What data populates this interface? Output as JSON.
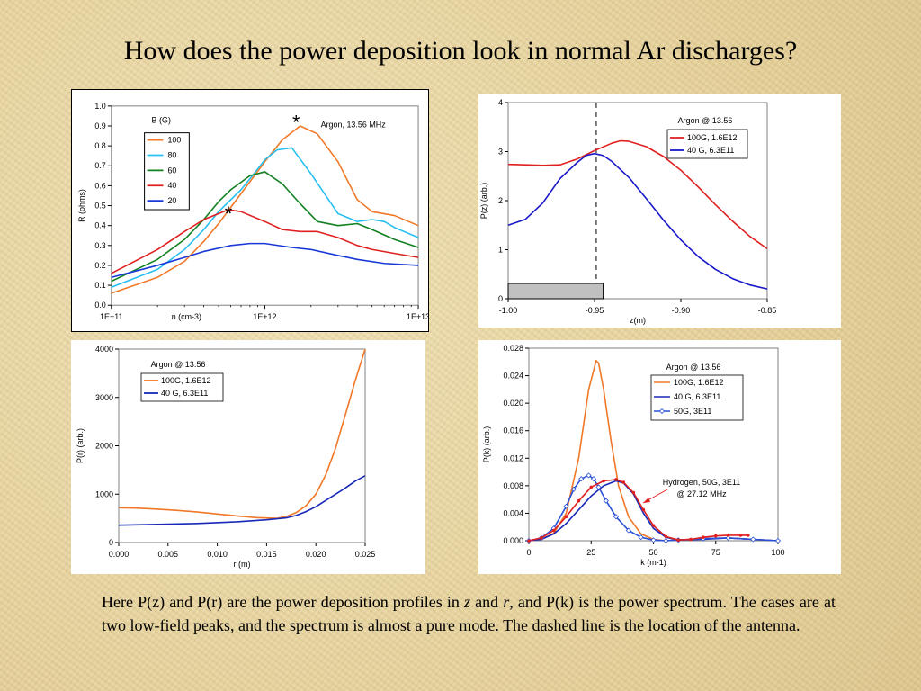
{
  "title": "How does the power deposition look in normal Ar discharges?",
  "caption": {
    "p1": "Here P(z) and P(r) are the power deposition profiles in ",
    "z": "z",
    "and": " and ",
    "r": "r",
    "p2": ", and P(k) is the power spectrum.  The cases are at two low-field peaks, and the spectrum is almost a pure mode.  The dashed line is the location of the antenna."
  },
  "chart_data": [
    {
      "id": "R_vs_n",
      "type": "line",
      "xscale": "log",
      "xlim": [
        100000000000.0,
        10000000000000.0
      ],
      "ylim": [
        0,
        1.0
      ],
      "ylabel": "R (ohms)",
      "xlabel": "n (cm-3)",
      "xtick_labels": [
        "1E+11",
        "1E+12",
        "1E+13"
      ],
      "ytick_labels": [
        "0.0",
        "0.1",
        "0.2",
        "0.3",
        "0.4",
        "0.5",
        "0.6",
        "0.7",
        "0.8",
        "0.9",
        "1.0"
      ],
      "annotation": "Argon, 13.56 MHz",
      "legend_title": "B (G)",
      "markers": [
        {
          "text": "*",
          "x": 1600000000000.0,
          "y": 0.93
        },
        {
          "text": "*",
          "x": 580000000000.0,
          "y": 0.47
        }
      ],
      "series": [
        {
          "name": "100",
          "color": "#f07828",
          "x": [
            100000000000.0,
            200000000000.0,
            300000000000.0,
            400000000000.0,
            500000000000.0,
            700000000000.0,
            1000000000000.0,
            1300000000000.0,
            1700000000000.0,
            2200000000000.0,
            3000000000000.0,
            4000000000000.0,
            5000000000000.0,
            7000000000000.0,
            10000000000000.0
          ],
          "y": [
            0.06,
            0.14,
            0.22,
            0.32,
            0.41,
            0.56,
            0.72,
            0.83,
            0.9,
            0.86,
            0.72,
            0.53,
            0.47,
            0.45,
            0.4
          ]
        },
        {
          "name": "80",
          "color": "#28c0f0",
          "x": [
            100000000000.0,
            200000000000.0,
            300000000000.0,
            400000000000.0,
            500000000000.0,
            700000000000.0,
            850000000000.0,
            1000000000000.0,
            1200000000000.0,
            1500000000000.0,
            2000000000000.0,
            2500000000000.0,
            3000000000000.0,
            4000000000000.0,
            5000000000000.0,
            6000000000000.0,
            7000000000000.0,
            10000000000000.0
          ],
          "y": [
            0.09,
            0.18,
            0.28,
            0.38,
            0.47,
            0.58,
            0.66,
            0.73,
            0.78,
            0.79,
            0.66,
            0.55,
            0.46,
            0.42,
            0.43,
            0.42,
            0.39,
            0.34
          ]
        },
        {
          "name": "60",
          "color": "#108020",
          "x": [
            100000000000.0,
            200000000000.0,
            300000000000.0,
            400000000000.0,
            500000000000.0,
            600000000000.0,
            800000000000.0,
            1000000000000.0,
            1300000000000.0,
            1700000000000.0,
            2200000000000.0,
            3000000000000.0,
            4000000000000.0,
            5000000000000.0,
            7000000000000.0,
            10000000000000.0
          ],
          "y": [
            0.12,
            0.23,
            0.33,
            0.43,
            0.52,
            0.58,
            0.65,
            0.67,
            0.61,
            0.51,
            0.42,
            0.4,
            0.41,
            0.38,
            0.33,
            0.29
          ]
        },
        {
          "name": "40",
          "color": "#e02020",
          "x": [
            100000000000.0,
            200000000000.0,
            300000000000.0,
            400000000000.0,
            580000000000.0,
            700000000000.0,
            1000000000000.0,
            1300000000000.0,
            1700000000000.0,
            2200000000000.0,
            3000000000000.0,
            4000000000000.0,
            5000000000000.0,
            7000000000000.0,
            10000000000000.0
          ],
          "y": [
            0.16,
            0.28,
            0.37,
            0.43,
            0.48,
            0.47,
            0.42,
            0.38,
            0.37,
            0.37,
            0.34,
            0.3,
            0.28,
            0.26,
            0.24
          ]
        },
        {
          "name": "20",
          "color": "#1838d8",
          "x": [
            100000000000.0,
            200000000000.0,
            300000000000.0,
            400000000000.0,
            600000000000.0,
            800000000000.0,
            1000000000000.0,
            1500000000000.0,
            2000000000000.0,
            3000000000000.0,
            4000000000000.0,
            6000000000000.0,
            10000000000000.0
          ],
          "y": [
            0.14,
            0.2,
            0.24,
            0.27,
            0.3,
            0.31,
            0.31,
            0.29,
            0.28,
            0.25,
            0.23,
            0.21,
            0.2
          ]
        }
      ]
    },
    {
      "id": "Pz",
      "type": "line",
      "xlim": [
        -1.0,
        -0.85
      ],
      "ylim": [
        0,
        4
      ],
      "ylabel": "P(z) (arb.)",
      "xlabel": "z(m)",
      "xtick_labels": [
        "-1.00",
        "-0.95",
        "-0.90",
        "-0.85"
      ],
      "ytick_labels": [
        "0",
        "1",
        "2",
        "3",
        "4"
      ],
      "legend_title": "Argon @ 13.56",
      "antenna_z": -0.949,
      "antenna_block_z": [
        -1.0,
        -0.945
      ],
      "series": [
        {
          "name": "100G, 1.6E12",
          "color": "#e02020",
          "x": [
            -1.0,
            -0.99,
            -0.98,
            -0.97,
            -0.96,
            -0.95,
            -0.94,
            -0.935,
            -0.93,
            -0.92,
            -0.91,
            -0.9,
            -0.89,
            -0.88,
            -0.87,
            -0.86,
            -0.85
          ],
          "y": [
            2.74,
            2.73,
            2.72,
            2.73,
            2.85,
            3.02,
            3.17,
            3.22,
            3.21,
            3.1,
            2.9,
            2.62,
            2.28,
            1.92,
            1.58,
            1.27,
            1.02
          ]
        },
        {
          "name": "40 G, 6.3E11",
          "color": "#1818c8",
          "x": [
            -1.0,
            -0.99,
            -0.98,
            -0.975,
            -0.97,
            -0.96,
            -0.955,
            -0.95,
            -0.945,
            -0.94,
            -0.93,
            -0.92,
            -0.91,
            -0.9,
            -0.89,
            -0.88,
            -0.87,
            -0.86,
            -0.85
          ],
          "y": [
            1.5,
            1.62,
            1.95,
            2.2,
            2.45,
            2.78,
            2.92,
            2.96,
            2.92,
            2.8,
            2.47,
            2.04,
            1.6,
            1.2,
            0.86,
            0.6,
            0.41,
            0.28,
            0.2
          ]
        }
      ]
    },
    {
      "id": "Pr",
      "type": "line",
      "xlim": [
        0,
        0.025
      ],
      "ylim": [
        0,
        4000
      ],
      "ylabel": "P(r) (arb.)",
      "xlabel": "r (m)",
      "xtick_labels": [
        "0.000",
        "0.005",
        "0.010",
        "0.015",
        "0.020",
        "0.025"
      ],
      "ytick_labels": [
        "0",
        "1000",
        "2000",
        "3000",
        "4000"
      ],
      "legend_title": "Argon @ 13.56",
      "series": [
        {
          "name": "100G, 1.6E12",
          "color": "#f07828",
          "x": [
            0,
            0.002,
            0.004,
            0.006,
            0.008,
            0.01,
            0.012,
            0.014,
            0.016,
            0.017,
            0.018,
            0.019,
            0.02,
            0.021,
            0.022,
            0.023,
            0.024,
            0.025
          ],
          "y": [
            720,
            710,
            690,
            665,
            630,
            590,
            550,
            515,
            500,
            540,
            620,
            760,
            1000,
            1400,
            1950,
            2650,
            3350,
            4000
          ]
        },
        {
          "name": "40 G, 6.3E11",
          "color": "#1828b8",
          "x": [
            0,
            0.004,
            0.008,
            0.012,
            0.015,
            0.017,
            0.018,
            0.019,
            0.02,
            0.021,
            0.022,
            0.023,
            0.024,
            0.025
          ],
          "y": [
            360,
            375,
            395,
            430,
            470,
            510,
            560,
            640,
            740,
            870,
            1000,
            1130,
            1270,
            1380
          ]
        }
      ]
    },
    {
      "id": "Pk",
      "type": "line",
      "xlim": [
        0,
        100
      ],
      "ylim": [
        0,
        0.028
      ],
      "ylabel": "P(k) (arb.)",
      "xlabel": "k (m-1)",
      "xtick_labels": [
        "0",
        "25",
        "50",
        "75",
        "100"
      ],
      "ytick_labels": [
        "0.000",
        "0.004",
        "0.008",
        "0.012",
        "0.016",
        "0.020",
        "0.024",
        "0.028"
      ],
      "legend_title": "Argon @ 13.56",
      "annotation": "Hydrogen, 50G, 3E11",
      "annotation2": "@ 27.12 MHz",
      "series": [
        {
          "name": "100G, 1.6E12",
          "color": "#f07828",
          "x": [
            0,
            5,
            10,
            15,
            20,
            24,
            27,
            28,
            30,
            33,
            36,
            40,
            45,
            50,
            55,
            60,
            70,
            80,
            90,
            100
          ],
          "y": [
            0,
            0.0002,
            0.0011,
            0.004,
            0.012,
            0.022,
            0.0262,
            0.0258,
            0.022,
            0.0145,
            0.008,
            0.0035,
            0.001,
            0.0002,
            0,
            0.0001,
            0.0003,
            0.0004,
            0.0002,
            0
          ]
        },
        {
          "name": "40 G, 6.3E11",
          "color": "#1828b8",
          "x": [
            0,
            5,
            10,
            15,
            20,
            25,
            30,
            35,
            38,
            42,
            46,
            50,
            55,
            60,
            70,
            80,
            90,
            100
          ],
          "y": [
            0,
            0.0002,
            0.001,
            0.0025,
            0.0045,
            0.0065,
            0.008,
            0.0087,
            0.0084,
            0.0068,
            0.004,
            0.0018,
            0.0005,
            0.0001,
            0.0002,
            0.0004,
            0.0002,
            0
          ]
        },
        {
          "name": "50G, 3E11",
          "color": "#2850d8",
          "marker": "open-diamond",
          "x": [
            0,
            5,
            10,
            15,
            18,
            21,
            24,
            26,
            28,
            31,
            35,
            40,
            45,
            50,
            55,
            60,
            70,
            80,
            90,
            100
          ],
          "y": [
            0,
            0.0004,
            0.0018,
            0.005,
            0.0075,
            0.009,
            0.0095,
            0.009,
            0.0078,
            0.0058,
            0.0035,
            0.0015,
            0.0005,
            0.0001,
            0,
            0.0001,
            0.0003,
            0.0004,
            0.0002,
            0
          ]
        },
        {
          "name": "Hydrogen",
          "color": "#e02020",
          "marker": "dot",
          "x": [
            0,
            5,
            10,
            15,
            20,
            25,
            30,
            35,
            38,
            42,
            46,
            50,
            55,
            60,
            65,
            70,
            75,
            80,
            85,
            88
          ],
          "y": [
            0,
            0.0004,
            0.0015,
            0.0035,
            0.0058,
            0.0078,
            0.0087,
            0.0089,
            0.0085,
            0.007,
            0.0045,
            0.0022,
            0.0006,
            0.0001,
            0.0002,
            0.0005,
            0.0007,
            0.0008,
            0.0008,
            0.0008
          ]
        }
      ]
    }
  ]
}
